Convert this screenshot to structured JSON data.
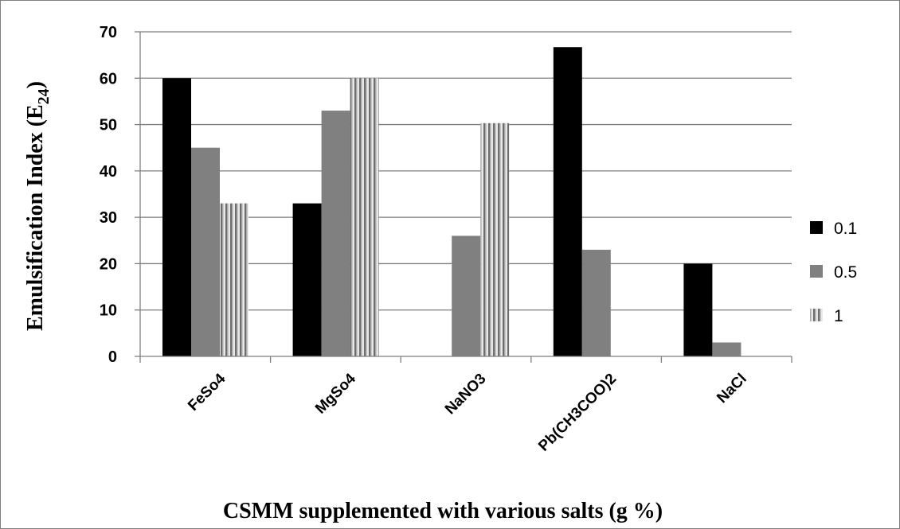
{
  "chart_data": {
    "type": "bar",
    "xlabel": "CSMM supplemented with various salts (g %)",
    "ylabel": {
      "main": "Emulsification Index (E",
      "subscript": "24",
      "close": ")"
    },
    "categories": [
      "FeSo4",
      "MgSo4",
      "NaNO3",
      "Pb(CH3COO)2",
      "NaCl"
    ],
    "series": [
      {
        "name": "0.1",
        "color": "#000000",
        "pattern": "solid",
        "values": [
          60,
          33,
          0,
          66.7,
          20
        ]
      },
      {
        "name": "0.5",
        "color": "#808080",
        "pattern": "solid",
        "values": [
          45,
          53,
          26,
          23,
          3
        ]
      },
      {
        "name": "1",
        "color": "#9a9a9a",
        "pattern": "vertical-stripes",
        "values": [
          33,
          60,
          50.3,
          0,
          0
        ]
      }
    ],
    "ylim": [
      0,
      70
    ],
    "yticks": [
      0,
      10,
      20,
      30,
      40,
      50,
      60,
      70
    ],
    "grid": true,
    "legend_position": "right"
  }
}
